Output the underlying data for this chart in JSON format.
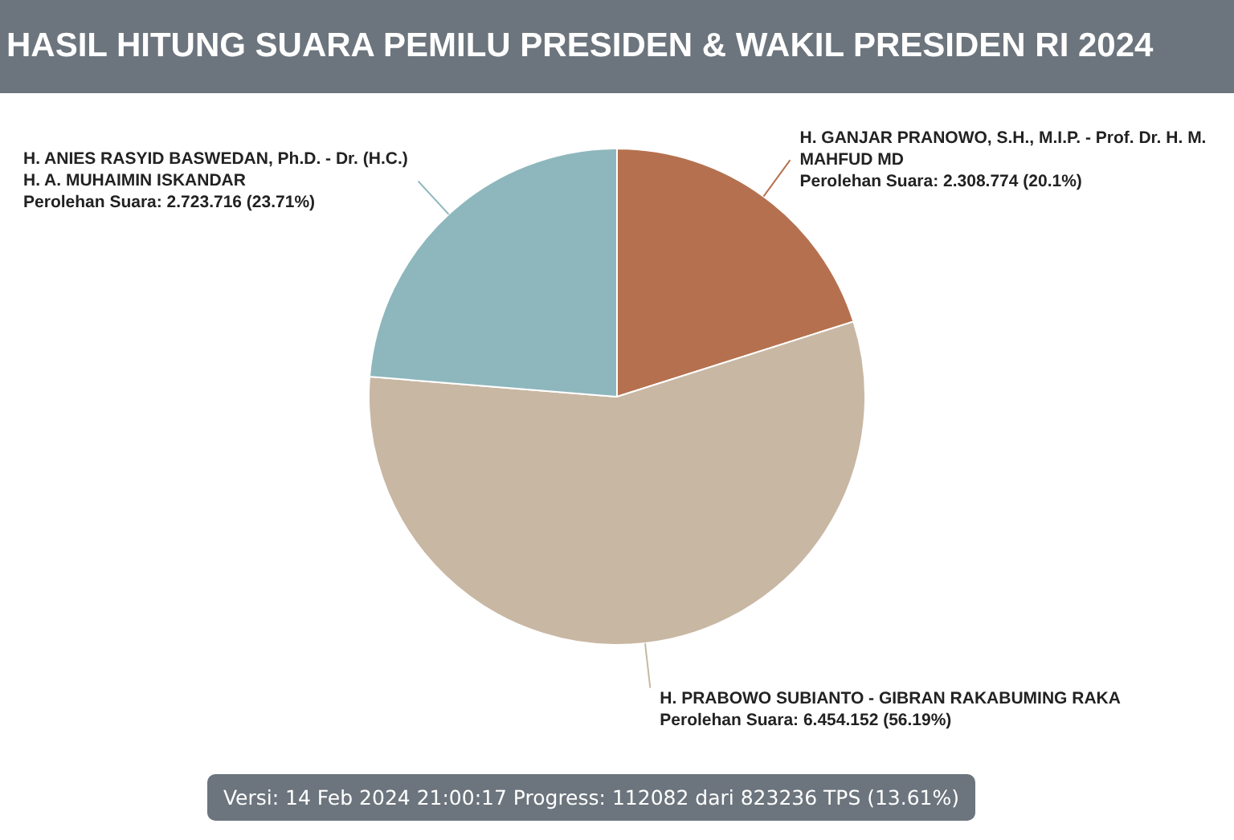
{
  "chart_data": {
    "type": "pie",
    "title": "HASIL HITUNG SUARA PEMILU PRESIDEN & WAKIL PRESIDEN RI 2024",
    "categories": [
      "H. GANJAR PRANOWO, S.H., M.I.P. - Prof. Dr. H. M. MAHFUD MD",
      "H. PRABOWO SUBIANTO - GIBRAN RAKABUMING RAKA",
      "H. ANIES RASYID BASWEDAN, Ph.D. - Dr. (H.C.) H. A. MUHAIMIN ISKANDAR"
    ],
    "values": [
      2308774,
      6454152,
      2723716
    ],
    "colors": [
      "#b5714f",
      "#c8b7a3",
      "#8db7bc"
    ],
    "value_labels": [
      "Perolehan Suara: 2.308.774 (20.1%)",
      "Perolehan Suara: 6.454.152 (56.19%)",
      "Perolehan Suara: 2.723.716 (23.71%)"
    ],
    "legend": false,
    "annotations": [
      "Versi: 14 Feb 2024 21:00:17 Progress: 112082 dari 823236 TPS (13.61%)"
    ]
  }
}
